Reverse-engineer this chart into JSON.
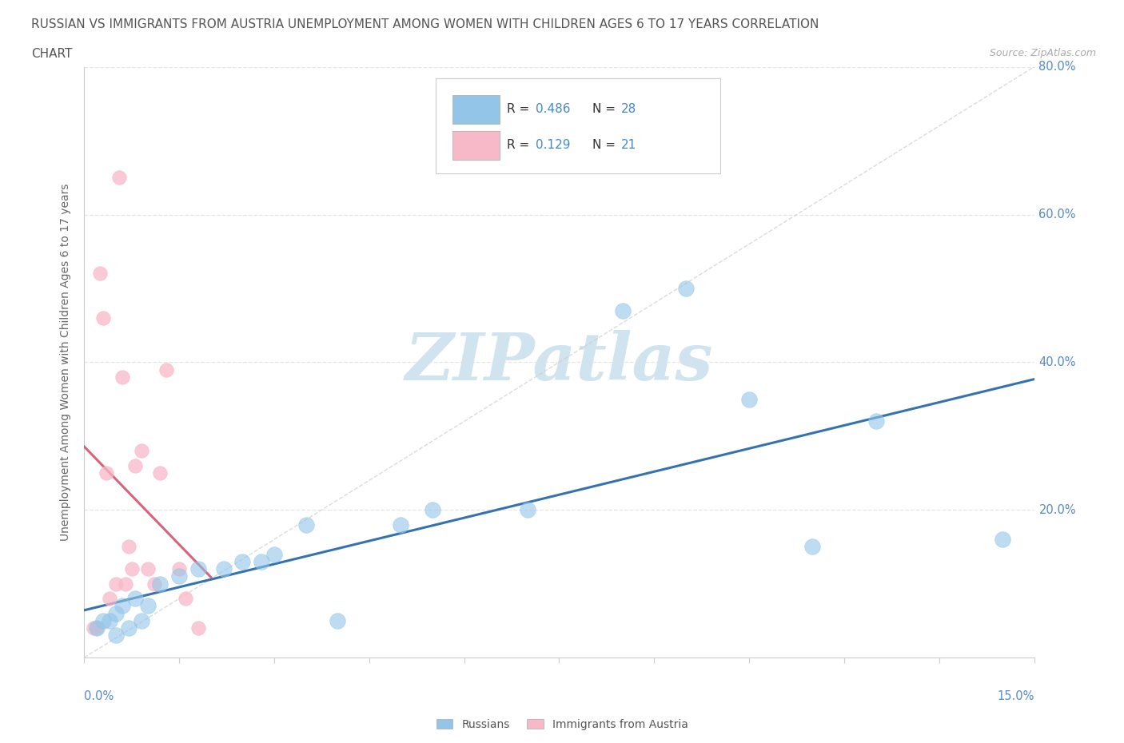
{
  "title_line1": "RUSSIAN VS IMMIGRANTS FROM AUSTRIA UNEMPLOYMENT AMONG WOMEN WITH CHILDREN AGES 6 TO 17 YEARS CORRELATION",
  "title_line2": "CHART",
  "source": "Source: ZipAtlas.com",
  "xlabel_bottom_left": "0.0%",
  "xlabel_bottom_right": "15.0%",
  "ylabel": "Unemployment Among Women with Children Ages 6 to 17 years",
  "xmin": 0.0,
  "xmax": 15.0,
  "ymin": 0.0,
  "ymax": 80.0,
  "ytick_values": [
    20.0,
    40.0,
    60.0,
    80.0
  ],
  "russian_R": 0.486,
  "russian_N": 28,
  "austria_R": 0.129,
  "austria_N": 21,
  "legend_label_russian": "Russians",
  "legend_label_austria": "Immigrants from Austria",
  "russian_color": "#92c5e8",
  "russian_color_edge": "#92c5e8",
  "austria_color": "#f7b8c8",
  "austria_color_edge": "#f7b8c8",
  "trendline_russian_color": "#3572b0",
  "trendline_austria_color": "#d9647a",
  "diag_color": "#cccccc",
  "watermark": "ZIPatlas",
  "watermark_color": "#d0e4f0",
  "grid_color": "#e0e0e0",
  "russian_x": [
    0.2,
    0.3,
    0.4,
    0.5,
    0.5,
    0.6,
    0.7,
    0.8,
    0.9,
    1.0,
    1.2,
    1.5,
    1.8,
    2.2,
    2.5,
    2.8,
    3.0,
    3.5,
    4.0,
    5.0,
    5.5,
    7.0,
    8.5,
    9.5,
    10.5,
    11.5,
    12.5,
    14.5
  ],
  "russian_y": [
    4.0,
    5.0,
    5.0,
    3.0,
    6.0,
    7.0,
    4.0,
    8.0,
    5.0,
    7.0,
    10.0,
    11.0,
    12.0,
    12.0,
    13.0,
    13.0,
    14.0,
    18.0,
    5.0,
    18.0,
    20.0,
    20.0,
    47.0,
    50.0,
    35.0,
    15.0,
    32.0,
    16.0
  ],
  "austria_x": [
    0.15,
    0.2,
    0.25,
    0.3,
    0.35,
    0.4,
    0.5,
    0.55,
    0.6,
    0.65,
    0.7,
    0.75,
    0.8,
    0.9,
    1.0,
    1.1,
    1.2,
    1.3,
    1.5,
    1.6,
    1.8
  ],
  "austria_y": [
    4.0,
    4.0,
    52.0,
    46.0,
    25.0,
    8.0,
    10.0,
    65.0,
    38.0,
    10.0,
    15.0,
    12.0,
    26.0,
    28.0,
    12.0,
    10.0,
    25.0,
    39.0,
    12.0,
    8.0,
    4.0
  ]
}
